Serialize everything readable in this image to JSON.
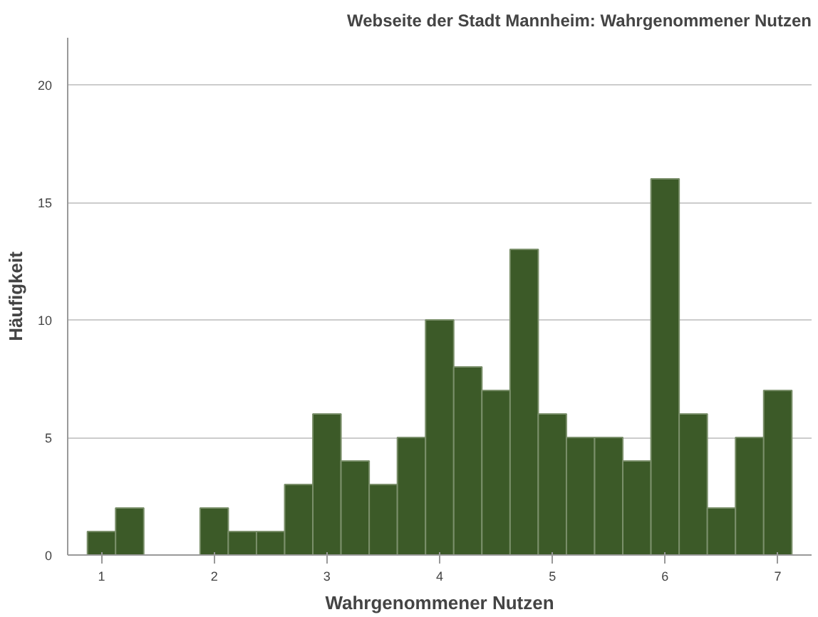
{
  "chart_data": {
    "type": "histogram",
    "title": "Webseite der Stadt Mannheim: Wahrgenommener Nutzen",
    "xlabel": "Wahrgenommener Nutzen",
    "ylabel": "Häufigkeit",
    "bins": [
      0.875,
      1.125,
      1.375,
      1.625,
      1.875,
      2.125,
      2.375,
      2.625,
      2.875,
      3.125,
      3.375,
      3.625,
      3.875,
      4.125,
      4.375,
      4.625,
      4.875,
      5.125,
      5.375,
      5.625,
      5.875,
      6.125,
      6.375,
      6.625,
      6.875,
      7.125
    ],
    "values": [
      1,
      2,
      0,
      0,
      2,
      1,
      1,
      3,
      6,
      4,
      3,
      5,
      10,
      8,
      7,
      13,
      6,
      5,
      5,
      4,
      16,
      6,
      2,
      5,
      7
    ],
    "color": "#3c5a28",
    "xlim": [
      0.7,
      7.3
    ],
    "ylim": [
      0,
      22
    ],
    "xticks": [
      1,
      2,
      3,
      4,
      5,
      6,
      7
    ],
    "yticks": [
      0,
      5,
      10,
      15,
      20
    ],
    "grid": "y"
  }
}
